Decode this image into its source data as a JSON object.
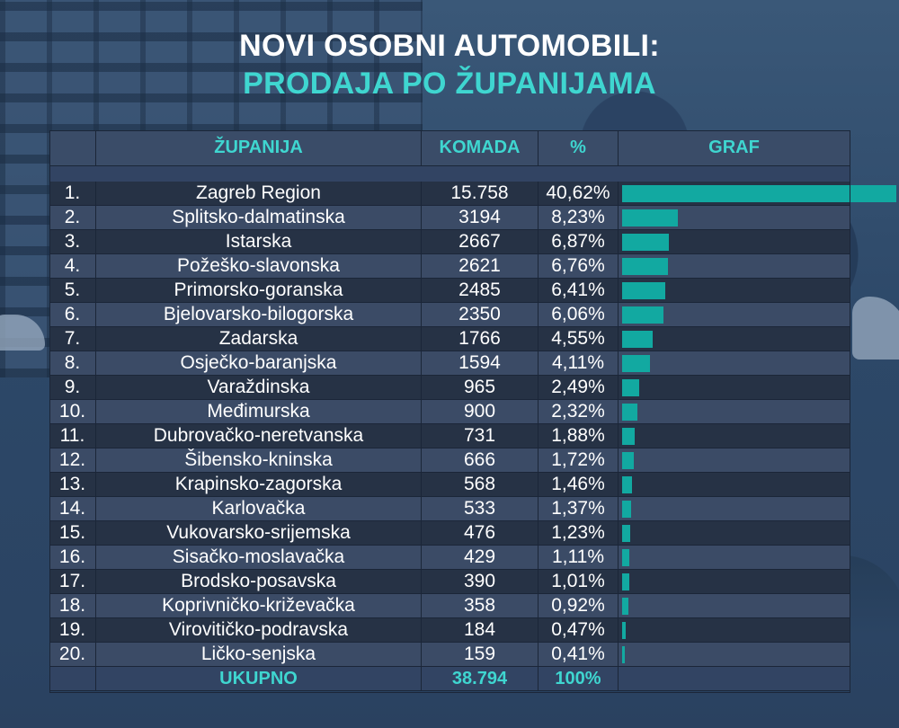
{
  "header": {
    "title_line1": "NOVI OSOBNI AUTOMOBILI:",
    "title_line2": "PRODAJA PO ŽUPANIJAMA"
  },
  "colors": {
    "accent": "#3fd6d0",
    "bar": "#12a9a1",
    "row_dark": "#263245",
    "row_light": "#3b4b66"
  },
  "chart_data": {
    "type": "table",
    "columns": [
      "",
      "ŽUPANIJA",
      "KOMADA",
      "%",
      "GRAF"
    ],
    "rows": [
      {
        "rank": "1.",
        "name": "Zagreb Region",
        "count": "15.758",
        "pct_label": "40,62%",
        "pct": 40.62
      },
      {
        "rank": "2.",
        "name": "Splitsko-dalmatinska",
        "count": "3194",
        "pct_label": "8,23%",
        "pct": 8.23
      },
      {
        "rank": "3.",
        "name": "Istarska",
        "count": "2667",
        "pct_label": "6,87%",
        "pct": 6.87
      },
      {
        "rank": "4.",
        "name": "Požeško-slavonska",
        "count": "2621",
        "pct_label": "6,76%",
        "pct": 6.76
      },
      {
        "rank": "5.",
        "name": "Primorsko-goranska",
        "count": "2485",
        "pct_label": "6,41%",
        "pct": 6.41
      },
      {
        "rank": "6.",
        "name": "Bjelovarsko-bilogorska",
        "count": "2350",
        "pct_label": "6,06%",
        "pct": 6.06
      },
      {
        "rank": "7.",
        "name": "Zadarska",
        "count": "1766",
        "pct_label": "4,55%",
        "pct": 4.55
      },
      {
        "rank": "8.",
        "name": "Osječko-baranjska",
        "count": "1594",
        "pct_label": "4,11%",
        "pct": 4.11
      },
      {
        "rank": "9.",
        "name": "Varaždinska",
        "count": "965",
        "pct_label": "2,49%",
        "pct": 2.49
      },
      {
        "rank": "10.",
        "name": "Međimurska",
        "count": "900",
        "pct_label": "2,32%",
        "pct": 2.32
      },
      {
        "rank": "11.",
        "name": "Dubrovačko-neretvanska",
        "count": "731",
        "pct_label": "1,88%",
        "pct": 1.88
      },
      {
        "rank": "12.",
        "name": "Šibensko-kninska",
        "count": "666",
        "pct_label": "1,72%",
        "pct": 1.72
      },
      {
        "rank": "13.",
        "name": "Krapinsko-zagorska",
        "count": "568",
        "pct_label": "1,46%",
        "pct": 1.46
      },
      {
        "rank": "14.",
        "name": "Karlovačka",
        "count": "533",
        "pct_label": "1,37%",
        "pct": 1.37
      },
      {
        "rank": "15.",
        "name": "Vukovarsko-srijemska",
        "count": "476",
        "pct_label": "1,23%",
        "pct": 1.23
      },
      {
        "rank": "16.",
        "name": "Sisačko-moslavačka",
        "count": "429",
        "pct_label": "1,11%",
        "pct": 1.11
      },
      {
        "rank": "17.",
        "name": "Brodsko-posavska",
        "count": "390",
        "pct_label": "1,01%",
        "pct": 1.01
      },
      {
        "rank": "18.",
        "name": "Koprivničko-križevačka",
        "count": "358",
        "pct_label": "0,92%",
        "pct": 0.92
      },
      {
        "rank": "19.",
        "name": "Virovitičko-podravska",
        "count": "184",
        "pct_label": "0,47%",
        "pct": 0.47
      },
      {
        "rank": "20.",
        "name": "Ličko-senjska",
        "count": "159",
        "pct_label": "0,41%",
        "pct": 0.41
      }
    ],
    "total": {
      "label": "UKUPNO",
      "count": "38.794",
      "pct_label": "100%"
    }
  }
}
